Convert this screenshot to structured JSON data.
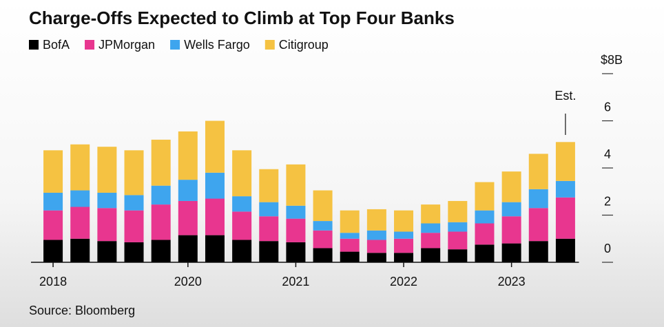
{
  "chart_data": {
    "type": "stacked_bar",
    "title": "Charge-Offs Expected to Climb at Top Four Banks",
    "source": "Source: Bloomberg",
    "annotation": "Est.",
    "categories": [
      "2018",
      null,
      null,
      null,
      null,
      "2020",
      null,
      null,
      null,
      "2021",
      null,
      null,
      null,
      "2022",
      null,
      null,
      null,
      "2023",
      null,
      null
    ],
    "series": [
      {
        "name": "BofA",
        "color": "#000000",
        "values": [
          0.95,
          1.0,
          0.9,
          0.85,
          0.95,
          1.15,
          1.15,
          0.95,
          0.9,
          0.85,
          0.6,
          0.45,
          0.4,
          0.4,
          0.6,
          0.55,
          0.75,
          0.8,
          0.9,
          1.0
        ]
      },
      {
        "name": "JPMorgan",
        "color": "#e8368f",
        "values": [
          1.25,
          1.35,
          1.4,
          1.35,
          1.5,
          1.45,
          1.55,
          1.2,
          1.05,
          1.0,
          0.75,
          0.55,
          0.55,
          0.6,
          0.65,
          0.75,
          0.9,
          1.15,
          1.4,
          1.75
        ]
      },
      {
        "name": "Wells Fargo",
        "color": "#3ea5ee",
        "values": [
          0.75,
          0.7,
          0.65,
          0.65,
          0.8,
          0.9,
          1.1,
          0.65,
          0.6,
          0.55,
          0.4,
          0.25,
          0.4,
          0.3,
          0.4,
          0.4,
          0.55,
          0.6,
          0.8,
          0.7
        ]
      },
      {
        "name": "Citigroup",
        "color": "#f5c242",
        "values": [
          1.8,
          1.95,
          1.95,
          1.9,
          1.95,
          2.05,
          2.2,
          1.95,
          1.4,
          1.75,
          1.3,
          0.95,
          0.9,
          0.9,
          0.8,
          0.9,
          1.2,
          1.3,
          1.5,
          1.65
        ]
      }
    ],
    "ylim": [
      0,
      8
    ],
    "yticks": [
      0,
      2,
      4,
      6,
      {
        "value": 8,
        "label": "$8B"
      }
    ]
  }
}
